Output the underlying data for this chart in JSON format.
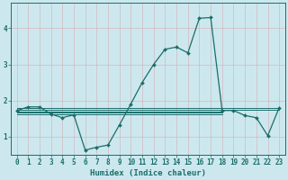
{
  "xlabel": "Humidex (Indice chaleur)",
  "ylabel": "",
  "bg_color": "#cce8ee",
  "grid_color": "#b8d8e0",
  "line_color": "#1a6e6a",
  "marker_color": "#1a6e6a",
  "xlim": [
    -0.5,
    23.5
  ],
  "ylim": [
    0.5,
    4.7
  ],
  "xticks": [
    0,
    1,
    2,
    3,
    4,
    5,
    6,
    7,
    8,
    9,
    10,
    11,
    12,
    13,
    14,
    15,
    16,
    17,
    18,
    19,
    20,
    21,
    22,
    23
  ],
  "yticks": [
    1,
    2,
    3,
    4
  ],
  "main_x": [
    0,
    1,
    2,
    3,
    4,
    5,
    6,
    7,
    8,
    9,
    10,
    11,
    12,
    13,
    14,
    15,
    16,
    17,
    18,
    19,
    20,
    21,
    22,
    23
  ],
  "main_y": [
    1.72,
    1.82,
    1.82,
    1.62,
    1.52,
    1.6,
    0.62,
    0.7,
    0.76,
    1.32,
    1.9,
    2.5,
    3.0,
    3.42,
    3.48,
    3.32,
    4.28,
    4.3,
    1.72,
    1.72,
    1.58,
    1.52,
    1.02,
    1.8
  ],
  "ref_lines": [
    {
      "x": [
        0,
        23
      ],
      "y": [
        1.78,
        1.78
      ]
    },
    {
      "x": [
        0,
        23
      ],
      "y": [
        1.74,
        1.74
      ]
    },
    {
      "x": [
        0,
        18
      ],
      "y": [
        1.7,
        1.7
      ]
    },
    {
      "x": [
        0,
        18
      ],
      "y": [
        1.66,
        1.66
      ]
    },
    {
      "x": [
        0,
        18
      ],
      "y": [
        1.62,
        1.62
      ]
    }
  ]
}
